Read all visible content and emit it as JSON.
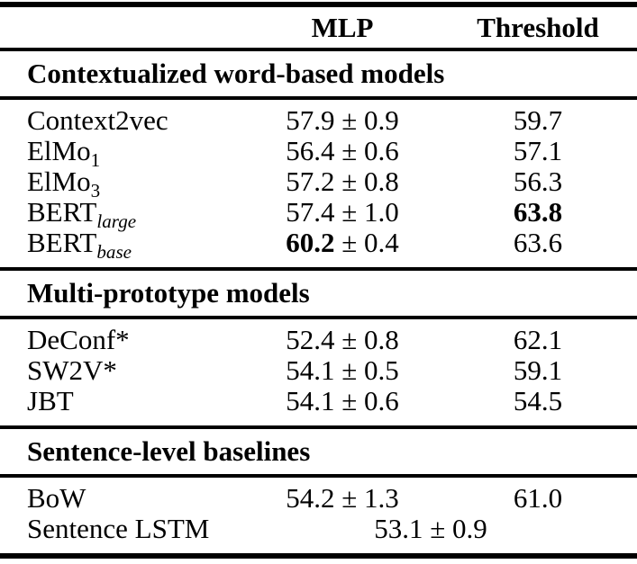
{
  "table": {
    "header": {
      "model_col": "",
      "mlp": "MLP",
      "threshold": "Threshold"
    },
    "sections": [
      {
        "title": "Contextualized word-based models",
        "rows": [
          {
            "name": "Context2vec",
            "sub": "",
            "mlp_value": "57.9",
            "mlp_pm": " ± 0.9",
            "threshold": "59.7"
          },
          {
            "name": "ElMo",
            "sub": "1",
            "mlp_value": "56.4",
            "mlp_pm": " ± 0.6",
            "threshold": "57.1"
          },
          {
            "name": "ElMo",
            "sub": "3",
            "mlp_value": "57.2",
            "mlp_pm": " ± 0.8",
            "threshold": "56.3"
          },
          {
            "name": "BERT",
            "sub": "large",
            "mlp_value": "57.4",
            "mlp_pm": " ± 1.0",
            "threshold": "63.8"
          },
          {
            "name": "BERT",
            "sub": "base",
            "mlp_value": "60.2",
            "mlp_pm": " ± 0.4",
            "threshold": "63.6"
          }
        ]
      },
      {
        "title": "Multi-prototype models",
        "rows": [
          {
            "name": "DeConf*",
            "sub": "",
            "mlp_value": "52.4",
            "mlp_pm": " ± 0.8",
            "threshold": "62.1"
          },
          {
            "name": "SW2V*",
            "sub": "",
            "mlp_value": "54.1",
            "mlp_pm": " ± 0.5",
            "threshold": "59.1"
          },
          {
            "name": "JBT",
            "sub": "",
            "mlp_value": "54.1",
            "mlp_pm": " ± 0.6",
            "threshold": "54.5"
          }
        ]
      },
      {
        "title": "Sentence-level baselines",
        "rows": [
          {
            "name": "BoW",
            "sub": "",
            "mlp_value": "54.2",
            "mlp_pm": " ± 1.3",
            "threshold": "61.0"
          },
          {
            "name": "Sentence LSTM",
            "sub": "",
            "merged_value": "53.1",
            "merged_pm": " ± 0.9"
          }
        ]
      }
    ],
    "colors": {
      "text": "#000000",
      "background": "#ffffff",
      "rule": "#000000"
    }
  }
}
